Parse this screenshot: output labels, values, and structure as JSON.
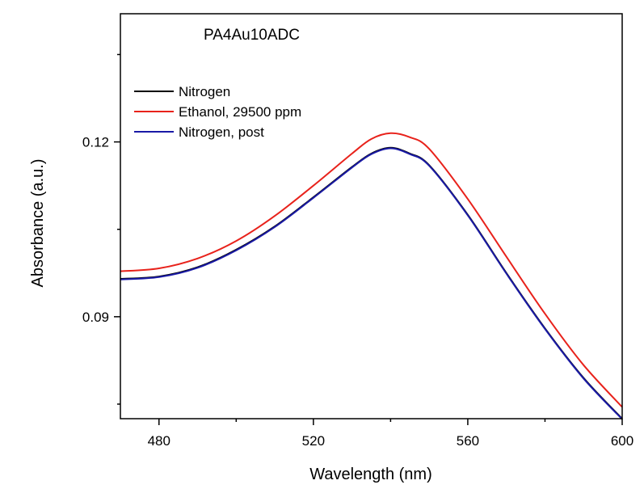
{
  "chart_data": {
    "type": "line",
    "title": "PA4Au10ADC",
    "xlabel": "Wavelength (nm)",
    "ylabel": "Absorbance (a.u.)",
    "xlim": [
      470,
      600
    ],
    "ylim": [
      0.0725,
      0.142
    ],
    "xticks": [
      480,
      520,
      560,
      600
    ],
    "xtick_labels": [
      "480",
      "520",
      "560",
      "600"
    ],
    "xminor": [
      500,
      540,
      580
    ],
    "yticks": [
      0.09,
      0.12
    ],
    "ytick_labels": [
      "0.09",
      "0.12"
    ],
    "yminor": [
      0.075,
      0.105,
      0.135
    ],
    "grid": false,
    "legend": "top-left",
    "series": [
      {
        "name": "Nitrogen",
        "color": "#000000",
        "x": [
          470,
          480,
          490,
          500,
          510,
          520,
          530,
          535,
          540,
          545,
          550,
          560,
          570,
          580,
          590,
          600
        ],
        "y": [
          0.0965,
          0.0969,
          0.0985,
          0.1015,
          0.1055,
          0.1105,
          0.1157,
          0.118,
          0.119,
          0.118,
          0.116,
          0.1075,
          0.0975,
          0.088,
          0.0795,
          0.0725
        ]
      },
      {
        "name": "Ethanol, 29500 ppm",
        "color": "#e8221b",
        "x": [
          470,
          480,
          490,
          500,
          510,
          520,
          530,
          535,
          540,
          545,
          550,
          560,
          570,
          580,
          590,
          600
        ],
        "y": [
          0.0978,
          0.0983,
          0.1,
          0.103,
          0.1073,
          0.1125,
          0.118,
          0.1205,
          0.1215,
          0.1208,
          0.1188,
          0.1102,
          0.1003,
          0.0905,
          0.0817,
          0.0745
        ]
      },
      {
        "name": "Nitrogen, post",
        "color": "#1a1aa6",
        "x": [
          470,
          480,
          490,
          500,
          510,
          520,
          530,
          535,
          540,
          545,
          550,
          560,
          570,
          580,
          590,
          600
        ],
        "y": [
          0.0964,
          0.0968,
          0.0984,
          0.1014,
          0.1054,
          0.1104,
          0.1156,
          0.1179,
          0.1189,
          0.1179,
          0.1159,
          0.1074,
          0.0974,
          0.0879,
          0.0794,
          0.0724
        ]
      }
    ]
  }
}
